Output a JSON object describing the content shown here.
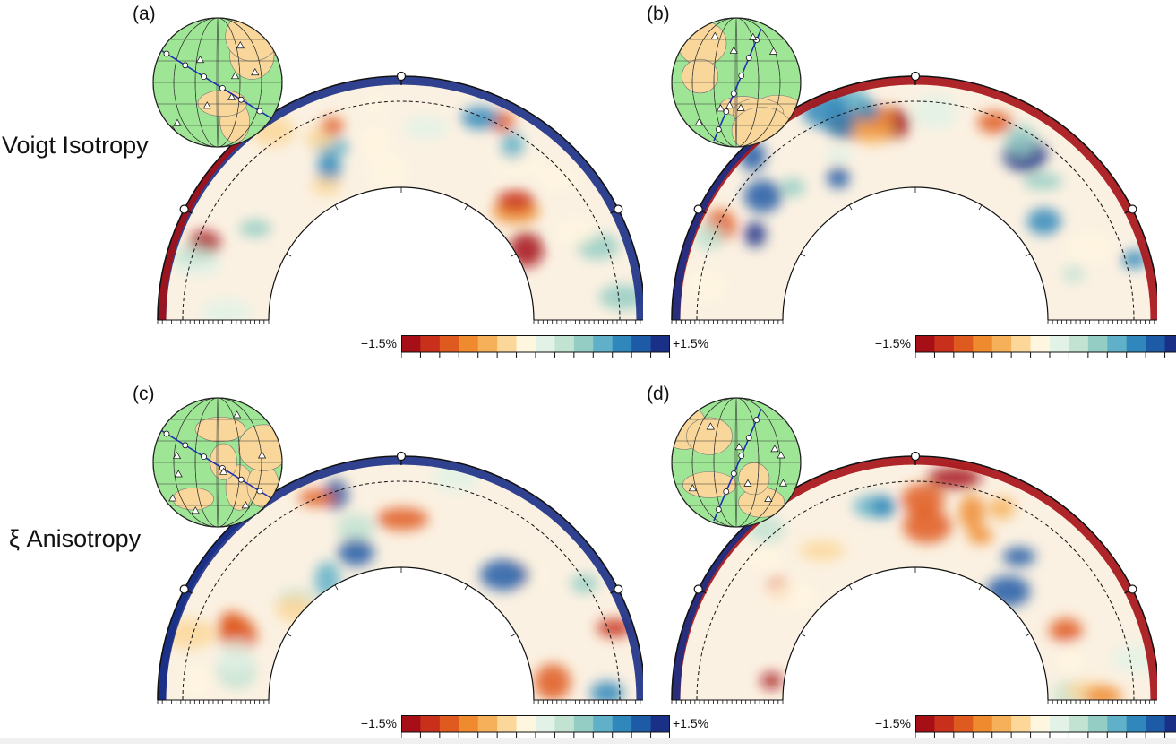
{
  "rows": [
    {
      "label": "Voigt Isotropy"
    },
    {
      "label": "ξ Anisotropy"
    }
  ],
  "panels": [
    {
      "label": "(a)"
    },
    {
      "label": "(b)"
    },
    {
      "label": "(c)"
    },
    {
      "label": "(d)"
    }
  ],
  "colorbar": {
    "min_label": "−1.5%",
    "max_label": "+1.5%",
    "colors": [
      "#a50f15",
      "#c8301b",
      "#df5a1f",
      "#ef8a2e",
      "#f6b05a",
      "#fbd79a",
      "#fff6e0",
      "#e3f2e6",
      "#c2e3d2",
      "#94cdc4",
      "#5fb0c8",
      "#2f87bb",
      "#1d5ba6",
      "#1a2f86"
    ]
  },
  "colors": {
    "land": "#f9d79a",
    "ocean_globe": "#9ee695",
    "path": "#1f2fb0"
  }
}
